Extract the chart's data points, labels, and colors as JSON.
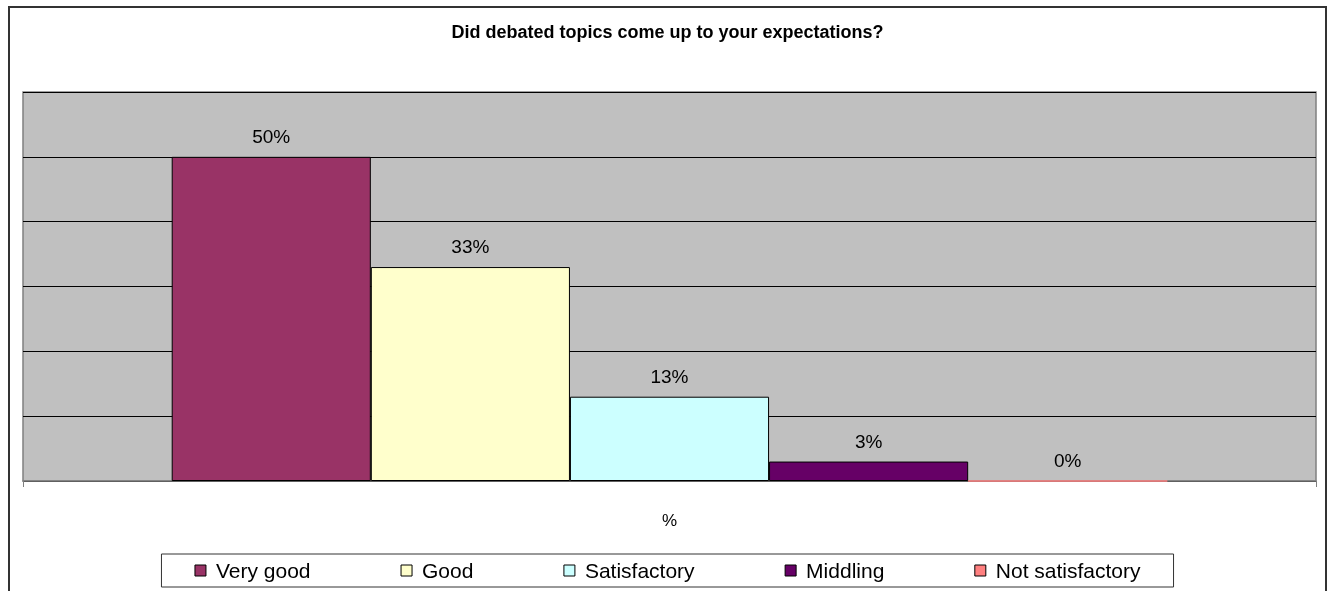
{
  "chart_data": {
    "type": "bar",
    "title": "Did debated topics come up to your expectations?",
    "xlabel": "%",
    "categories": [
      null
    ],
    "series": [
      {
        "name": "Very good",
        "color": "#993366",
        "values": [
          50
        ],
        "value_labels": [
          "50%"
        ]
      },
      {
        "name": "Good",
        "color": "#ffffcc",
        "values": [
          33
        ],
        "value_labels": [
          "33%"
        ]
      },
      {
        "name": "Satisfactory",
        "color": "#ccffff",
        "values": [
          13
        ],
        "value_labels": [
          "13%"
        ]
      },
      {
        "name": "Middling",
        "color": "#660066",
        "values": [
          3
        ],
        "value_labels": [
          "3%"
        ]
      },
      {
        "name": "Not satisfactory",
        "color": "#ff8080",
        "values": [
          0
        ],
        "value_labels": [
          "0%"
        ]
      }
    ],
    "ylim": [
      0,
      60
    ],
    "yticks": [
      {
        "value": 0,
        "label": null
      },
      {
        "value": 10,
        "label": null
      },
      {
        "value": 20,
        "label": null
      },
      {
        "value": 30,
        "label": null
      },
      {
        "value": 40,
        "label": null
      },
      {
        "value": 50,
        "label": null
      },
      {
        "value": 60,
        "label": null
      }
    ],
    "grid": "y",
    "legend": "bottom"
  }
}
